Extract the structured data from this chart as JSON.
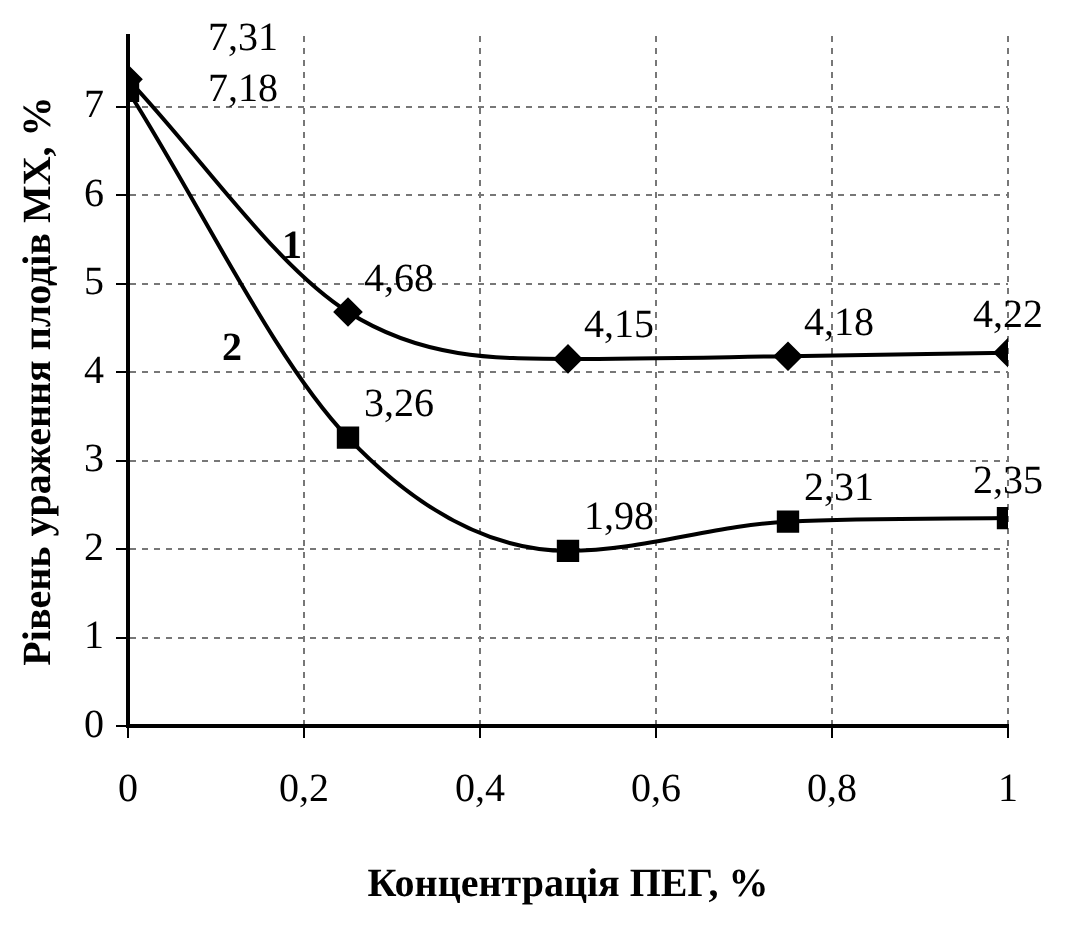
{
  "chart_data": {
    "type": "line",
    "xlabel": "Концентрація ПЕГ, %",
    "ylabel": "Рівень ураження плодів МХ, %",
    "x": [
      0,
      0.25,
      0.5,
      0.75,
      1
    ],
    "series": [
      {
        "name": "1",
        "color": "#000000",
        "marker": "diamond",
        "values": [
          7.31,
          4.68,
          4.15,
          4.18,
          4.22
        ],
        "value_labels": [
          "7,31",
          "4,68",
          "4,15",
          "4,18",
          "4,22"
        ]
      },
      {
        "name": "2",
        "color": "#000000",
        "marker": "square",
        "values": [
          7.18,
          3.26,
          1.98,
          2.31,
          2.35
        ],
        "value_labels": [
          "7,18",
          "3,26",
          "1,98",
          "2,31",
          "2,35"
        ]
      }
    ],
    "xlim": [
      0,
      1
    ],
    "xticks": [
      0,
      {
        "value": 0.2,
        "label": "0,2"
      },
      {
        "value": 0.4,
        "label": "0,4"
      },
      {
        "value": 0.6,
        "label": "0,6"
      },
      {
        "value": 0.8,
        "label": "0,8"
      },
      1
    ],
    "ylim": [
      0,
      7.8
    ],
    "yticks": [
      0,
      1,
      2,
      3,
      4,
      5,
      6,
      7
    ],
    "grid": true,
    "legend": false,
    "line_style": "solid"
  }
}
